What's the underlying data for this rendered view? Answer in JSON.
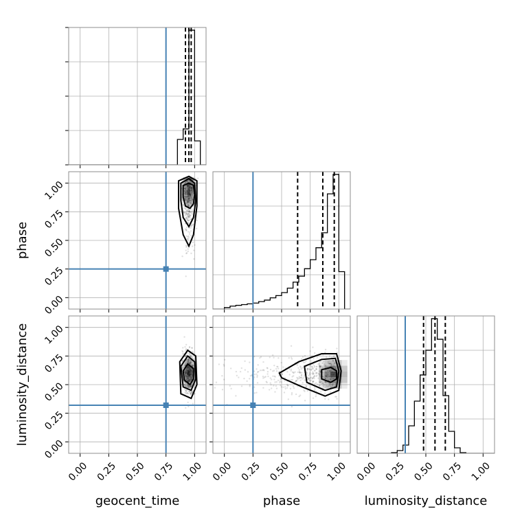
{
  "chart_data": {
    "type": "corner",
    "parameters": [
      "geocent_time",
      "phase",
      "luminosity_distance"
    ],
    "truths": {
      "geocent_time": 0.75,
      "phase": 0.25,
      "luminosity_distance": 0.32
    },
    "axis_range": [
      -0.1,
      1.1
    ],
    "tick_values": [
      0.0,
      0.25,
      0.5,
      0.75,
      1.0
    ],
    "tick_labels": [
      "0.00",
      "0.25",
      "0.50",
      "0.75",
      "1.00"
    ],
    "grid": true,
    "marginals": {
      "geocent_time": {
        "bin_edges": [
          0.85,
          0.9,
          0.95,
          1.0,
          1.05
        ],
        "counts": [
          0.17,
          0.24,
          0.9,
          0.16
        ],
        "quantiles": [
          0.92,
          0.95,
          0.97
        ]
      },
      "phase": {
        "bin_edges": [
          0.0,
          0.05,
          0.1,
          0.15,
          0.2,
          0.25,
          0.3,
          0.35,
          0.4,
          0.45,
          0.5,
          0.55,
          0.6,
          0.65,
          0.7,
          0.75,
          0.8,
          0.85,
          0.9,
          0.95,
          1.0,
          1.05
        ],
        "counts": [
          0.01,
          0.02,
          0.025,
          0.03,
          0.035,
          0.04,
          0.05,
          0.06,
          0.075,
          0.09,
          0.11,
          0.14,
          0.18,
          0.22,
          0.27,
          0.33,
          0.41,
          0.51,
          0.77,
          0.9,
          0.25
        ],
        "quantiles": [
          0.64,
          0.86,
          0.96
        ]
      },
      "luminosity_distance": {
        "bin_edges": [
          0.2,
          0.25,
          0.3,
          0.35,
          0.4,
          0.45,
          0.5,
          0.55,
          0.6,
          0.65,
          0.7,
          0.75,
          0.8,
          0.85
        ],
        "counts": [
          0.005,
          0.02,
          0.06,
          0.2,
          0.38,
          0.57,
          0.75,
          0.98,
          0.83,
          0.42,
          0.16,
          0.04,
          0.005
        ],
        "quantiles": [
          0.48,
          0.58,
          0.67
        ]
      }
    },
    "joint": [
      {
        "x": "geocent_time",
        "y": "phase",
        "peak": [
          0.95,
          0.92
        ],
        "contours": [
          [
            [
              0.9,
              0.98
            ],
            [
              0.95,
              1.0
            ],
            [
              0.99,
              0.98
            ],
            [
              1.0,
              0.9
            ],
            [
              0.99,
              0.82
            ],
            [
              0.96,
              0.78
            ],
            [
              0.92,
              0.8
            ],
            [
              0.9,
              0.88
            ]
          ],
          [
            [
              0.88,
              1.0
            ],
            [
              0.95,
              1.04
            ],
            [
              1.0,
              1.0
            ],
            [
              1.01,
              0.85
            ],
            [
              0.99,
              0.7
            ],
            [
              0.95,
              0.62
            ],
            [
              0.9,
              0.7
            ],
            [
              0.88,
              0.85
            ]
          ],
          [
            [
              0.86,
              1.02
            ],
            [
              0.95,
              1.06
            ],
            [
              1.02,
              1.02
            ],
            [
              1.02,
              0.8
            ],
            [
              0.99,
              0.55
            ],
            [
              0.95,
              0.45
            ],
            [
              0.9,
              0.55
            ],
            [
              0.86,
              0.78
            ]
          ]
        ]
      },
      {
        "x": "geocent_time",
        "y": "luminosity_distance",
        "peak": [
          0.95,
          0.6
        ],
        "contours": [
          [
            [
              0.9,
              0.62
            ],
            [
              0.94,
              0.68
            ],
            [
              0.99,
              0.64
            ],
            [
              0.99,
              0.55
            ],
            [
              0.96,
              0.5
            ],
            [
              0.91,
              0.54
            ]
          ],
          [
            [
              0.88,
              0.66
            ],
            [
              0.94,
              0.75
            ],
            [
              1.0,
              0.7
            ],
            [
              1.01,
              0.55
            ],
            [
              0.97,
              0.45
            ],
            [
              0.9,
              0.48
            ]
          ],
          [
            [
              0.87,
              0.7
            ],
            [
              0.94,
              0.8
            ],
            [
              1.01,
              0.75
            ],
            [
              1.02,
              0.5
            ],
            [
              0.97,
              0.38
            ],
            [
              0.88,
              0.42
            ]
          ]
        ]
      },
      {
        "x": "phase",
        "y": "luminosity_distance",
        "peak": [
          0.95,
          0.59
        ],
        "contours": [
          [
            [
              0.85,
              0.63
            ],
            [
              0.93,
              0.65
            ],
            [
              0.98,
              0.62
            ],
            [
              0.98,
              0.55
            ],
            [
              0.93,
              0.52
            ],
            [
              0.85,
              0.55
            ]
          ],
          [
            [
              0.7,
              0.66
            ],
            [
              0.85,
              0.72
            ],
            [
              0.97,
              0.73
            ],
            [
              1.0,
              0.62
            ],
            [
              0.98,
              0.48
            ],
            [
              0.88,
              0.45
            ],
            [
              0.72,
              0.52
            ]
          ],
          [
            [
              0.48,
              0.6
            ],
            [
              0.65,
              0.7
            ],
            [
              0.85,
              0.77
            ],
            [
              0.98,
              0.77
            ],
            [
              1.02,
              0.62
            ],
            [
              1.0,
              0.45
            ],
            [
              0.88,
              0.4
            ],
            [
              0.68,
              0.48
            ],
            [
              0.5,
              0.56
            ]
          ]
        ]
      }
    ]
  }
}
